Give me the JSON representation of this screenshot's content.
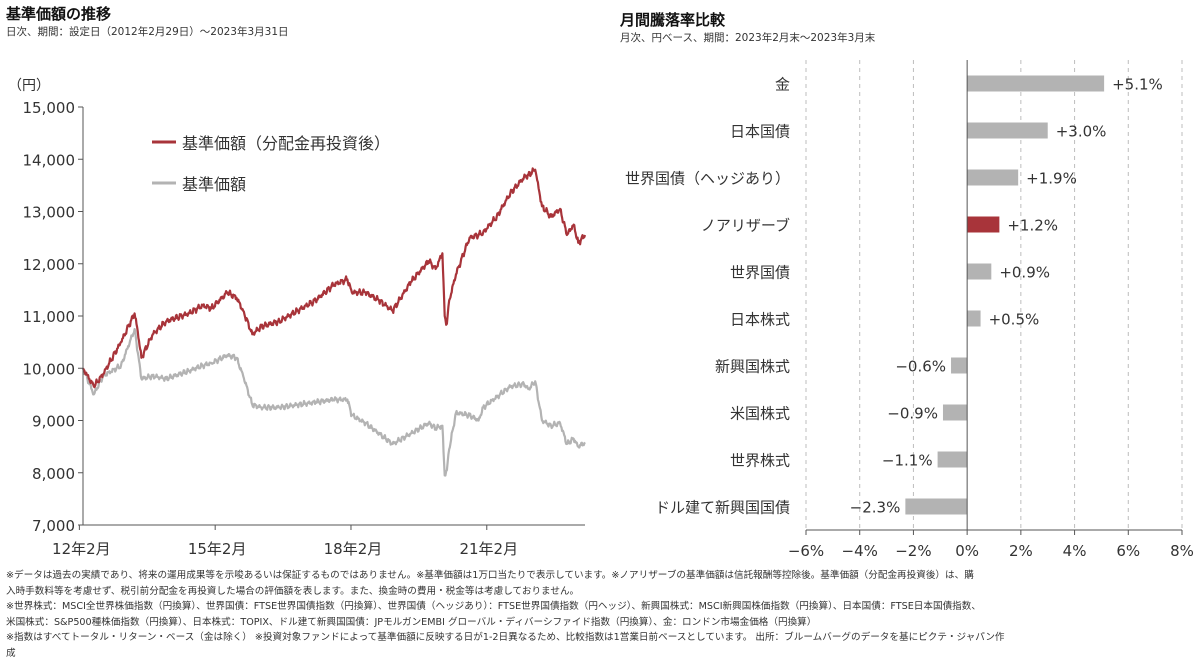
{
  "left": {
    "title": "基準価額の推移",
    "subtitle": "日次、期間：設定日（2012年2月29日）～2023年3月31日",
    "unit": "（円）",
    "legend": [
      "基準価額（分配金再投資後）",
      "基準価額"
    ]
  },
  "right": {
    "title": "月間騰落率比較",
    "subtitle": "月次、円ベース、期間：2023年2月末～2023年3月末"
  },
  "colors": {
    "reinvest": "#a8343a",
    "nav": "#b3b3b3",
    "highlight": "#a8343a",
    "bar": "#b3b3b3",
    "axis": "#555555",
    "grid": "#bdbdbd"
  },
  "chart_data": [
    {
      "type": "line",
      "title": "基準価額の推移",
      "ylabel": "（円）",
      "ylim": [
        7000,
        15000
      ],
      "yticks": [
        "7,000",
        "8,000",
        "9,000",
        "10,000",
        "11,000",
        "12,000",
        "13,000",
        "14,000",
        "15,000"
      ],
      "xlim": [
        2012.16,
        2023.25
      ],
      "xticks": [
        {
          "value": 2012.08,
          "label": "12年2月"
        },
        {
          "value": 2015.08,
          "label": "15年2月"
        },
        {
          "value": 2018.08,
          "label": "18年2月"
        },
        {
          "value": 2021.08,
          "label": "21年2月"
        }
      ],
      "series": [
        {
          "name": "基準価額（分配金再投資後）",
          "color": "#a8343a",
          "x": [
            2012.16,
            2012.4,
            2012.6,
            2013.0,
            2013.3,
            2013.37,
            2013.45,
            2013.7,
            2014.0,
            2014.5,
            2014.8,
            2015.0,
            2015.35,
            2015.55,
            2015.7,
            2015.9,
            2016.1,
            2016.5,
            2016.9,
            2017.3,
            2017.7,
            2018.0,
            2018.1,
            2018.4,
            2018.7,
            2019.0,
            2019.4,
            2019.8,
            2019.95,
            2020.1,
            2020.15,
            2020.2,
            2020.25,
            2020.4,
            2020.7,
            2020.9,
            2021.0,
            2021.3,
            2021.6,
            2021.9,
            2022.0,
            2022.15,
            2022.3,
            2022.5,
            2022.7,
            2022.85,
            2023.0,
            2023.1,
            2023.25
          ],
          "values": [
            10000,
            9650,
            9880,
            10500,
            11050,
            10700,
            10200,
            10650,
            10900,
            11050,
            11200,
            11150,
            11450,
            11350,
            11100,
            10650,
            10800,
            10900,
            11100,
            11300,
            11600,
            11700,
            11450,
            11450,
            11300,
            11100,
            11650,
            12050,
            11900,
            12200,
            11000,
            10850,
            11300,
            11800,
            12500,
            12550,
            12600,
            12900,
            13350,
            13650,
            13700,
            13800,
            13100,
            12900,
            13050,
            12550,
            12750,
            12400,
            12550
          ]
        },
        {
          "name": "基準価額",
          "color": "#b3b3b3",
          "x": [
            2012.16,
            2012.4,
            2012.6,
            2013.0,
            2013.3,
            2013.37,
            2013.45,
            2013.7,
            2014.0,
            2014.5,
            2014.8,
            2015.0,
            2015.35,
            2015.55,
            2015.7,
            2015.9,
            2016.1,
            2016.5,
            2016.9,
            2017.3,
            2017.7,
            2018.0,
            2018.1,
            2018.4,
            2018.7,
            2019.0,
            2019.4,
            2019.8,
            2019.95,
            2020.1,
            2020.15,
            2020.2,
            2020.25,
            2020.4,
            2020.7,
            2020.9,
            2021.0,
            2021.3,
            2021.6,
            2021.9,
            2022.0,
            2022.15,
            2022.3,
            2022.5,
            2022.7,
            2022.85,
            2023.0,
            2023.1,
            2023.25
          ],
          "values": [
            10000,
            9500,
            9850,
            10050,
            10750,
            10300,
            9800,
            9850,
            9800,
            9950,
            10050,
            10100,
            10250,
            10200,
            9850,
            9300,
            9250,
            9250,
            9300,
            9350,
            9400,
            9400,
            9100,
            8950,
            8750,
            8550,
            8750,
            8950,
            8850,
            8900,
            7950,
            8050,
            8450,
            9150,
            9100,
            9000,
            9250,
            9450,
            9650,
            9700,
            9600,
            9750,
            9000,
            8900,
            8950,
            8550,
            8650,
            8500,
            8580
          ]
        }
      ]
    },
    {
      "type": "bar",
      "orientation": "horizontal",
      "title": "月間騰落率比較",
      "xlim": [
        -6,
        8
      ],
      "xticks": [
        -6,
        -4,
        -2,
        0,
        2,
        4,
        6,
        8
      ],
      "categories": [
        "金",
        "日本国債",
        "世界国債（ヘッジあり）",
        "ノアリザーブ",
        "世界国債",
        "日本株式",
        "新興国株式",
        "米国株式",
        "世界株式",
        "ドル建て新興国国債"
      ],
      "values": [
        5.1,
        3.0,
        1.9,
        1.2,
        0.9,
        0.5,
        -0.6,
        -0.9,
        -1.1,
        -2.3
      ],
      "labels": [
        "+5.1%",
        "+3.0%",
        "+1.9%",
        "+1.2%",
        "+0.9%",
        "+0.5%",
        "−0.6%",
        "−0.9%",
        "−1.1%",
        "−2.3%"
      ],
      "highlight": "ノアリザーブ",
      "grid": true
    }
  ],
  "notes": [
    "※データは過去の実績であり、将来の運用成果等を示唆あるいは保証するものではありません。※基準価額は1万口当たりで表示しています。※ノアリザーブの基準価額は信託報酬等控除後。基準価額（分配金再投資後）は、購",
    "入時手数料等を考慮せず、税引前分配金を再投資した場合の評価額を表します。また、換金時の費用・税金等は考慮しておりません。",
    "※世界株式：MSCI全世界株価指数（円換算）、世界国債：FTSE世界国債指数（円換算）、世界国債（ヘッジあり）：FTSE世界国債指数（円ヘッジ）、新興国株式：MSCI新興国株価指数（円換算）、日本国債：FTSE日本国債指数、",
    "米国株式：S&P500種株価指数（円換算）、日本株式：TOPIX、ドル建て新興国国債：JPモルガンEMBI グローバル・ディバーシファイド指数（円換算）、金：ロンドン市場金価格（円換算）",
    "※指数はすべてトータル・リターン・ベース（金は除く） ※投資対象ファンドによって基準価額に反映する日が1-2日異なるため、比較指数は1営業日前ベースとしています。 出所：ブルームバーグのデータを基にピクテ・ジャパン作",
    "成"
  ]
}
